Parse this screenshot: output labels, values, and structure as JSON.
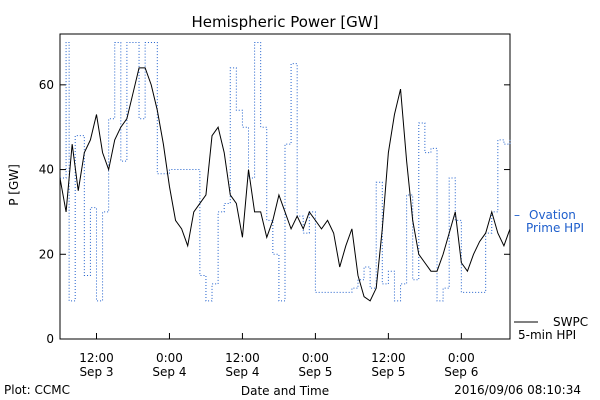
{
  "chart_data": {
    "type": "line",
    "title": "Hemispheric Power [GW]",
    "xlabel": "Date and Time",
    "ylabel": "P [GW]",
    "ylim": [
      0,
      72
    ],
    "yticks": [
      0,
      20,
      40,
      60
    ],
    "xlim": [
      "2016-09-03T06:00",
      "2016-09-06T08:00"
    ],
    "xticks": [
      {
        "at": "2016-09-03T12:00",
        "time": "12:00",
        "date": "Sep 3"
      },
      {
        "at": "2016-09-04T00:00",
        "time": "0:00",
        "date": "Sep 4"
      },
      {
        "at": "2016-09-04T12:00",
        "time": "12:00",
        "date": "Sep 4"
      },
      {
        "at": "2016-09-05T00:00",
        "time": "0:00",
        "date": "Sep 5"
      },
      {
        "at": "2016-09-05T12:00",
        "time": "12:00",
        "date": "Sep 5"
      },
      {
        "at": "2016-09-06T00:00",
        "time": "0:00",
        "date": "Sep 6"
      }
    ],
    "grid": false,
    "legend_placement": "right",
    "series": [
      {
        "name": "Ovation Prime HPI",
        "legend_lines": [
          "Ovation",
          "Prime HPI"
        ],
        "style": "dotted",
        "color": "#1f5fcc",
        "x": [
          "2016-09-03T06:00",
          "2016-09-03T07:00",
          "2016-09-03T07:30",
          "2016-09-03T08:30",
          "2016-09-03T09:00",
          "2016-09-03T10:00",
          "2016-09-03T11:00",
          "2016-09-03T12:00",
          "2016-09-03T13:00",
          "2016-09-03T14:00",
          "2016-09-03T15:00",
          "2016-09-03T16:00",
          "2016-09-03T17:00",
          "2016-09-03T18:00",
          "2016-09-03T19:00",
          "2016-09-03T20:00",
          "2016-09-03T21:00",
          "2016-09-03T22:00",
          "2016-09-04T00:00",
          "2016-09-04T03:00",
          "2016-09-04T05:00",
          "2016-09-04T06:00",
          "2016-09-04T07:00",
          "2016-09-04T08:00",
          "2016-09-04T09:00",
          "2016-09-04T10:00",
          "2016-09-04T11:00",
          "2016-09-04T12:00",
          "2016-09-04T13:00",
          "2016-09-04T14:00",
          "2016-09-04T15:00",
          "2016-09-04T16:00",
          "2016-09-04T17:00",
          "2016-09-04T18:00",
          "2016-09-04T19:00",
          "2016-09-04T20:00",
          "2016-09-04T21:00",
          "2016-09-04T22:00",
          "2016-09-04T23:00",
          "2016-09-05T00:00",
          "2016-09-05T04:00",
          "2016-09-05T06:00",
          "2016-09-05T07:00",
          "2016-09-05T08:00",
          "2016-09-05T09:00",
          "2016-09-05T10:00",
          "2016-09-05T11:00",
          "2016-09-05T12:00",
          "2016-09-05T13:00",
          "2016-09-05T14:00",
          "2016-09-05T15:00",
          "2016-09-05T16:00",
          "2016-09-05T17:00",
          "2016-09-05T18:00",
          "2016-09-05T19:00",
          "2016-09-05T20:00",
          "2016-09-05T21:00",
          "2016-09-05T22:00",
          "2016-09-05T23:00",
          "2016-09-06T00:00",
          "2016-09-06T01:00",
          "2016-09-06T02:00",
          "2016-09-06T03:00",
          "2016-09-06T04:00",
          "2016-09-06T05:00",
          "2016-09-06T06:00",
          "2016-09-06T07:00",
          "2016-09-06T08:00"
        ],
        "y": [
          38,
          70,
          9,
          48,
          48,
          15,
          31,
          9,
          30,
          52,
          70,
          42,
          70,
          70,
          52,
          70,
          70,
          39,
          40,
          40,
          15,
          9,
          13,
          30,
          32,
          64,
          54,
          50,
          38,
          70,
          50,
          28,
          20,
          9,
          46,
          65,
          29,
          25,
          30,
          11,
          11,
          12,
          14,
          17,
          12,
          37,
          13,
          16,
          9,
          13,
          34,
          14,
          51,
          44,
          45,
          9,
          12,
          38,
          28,
          11,
          11,
          11,
          11,
          25,
          30,
          47,
          46,
          47
        ]
      },
      {
        "name": "SWPC 5-min HPI",
        "legend_lines": [
          "SWPC",
          "5-min HPI"
        ],
        "style": "solid",
        "color": "#000000",
        "x": [
          "2016-09-03T06:00",
          "2016-09-03T07:00",
          "2016-09-03T08:00",
          "2016-09-03T09:00",
          "2016-09-03T10:00",
          "2016-09-03T11:00",
          "2016-09-03T12:00",
          "2016-09-03T13:00",
          "2016-09-03T14:00",
          "2016-09-03T15:00",
          "2016-09-03T16:00",
          "2016-09-03T17:00",
          "2016-09-03T18:00",
          "2016-09-03T19:00",
          "2016-09-03T20:00",
          "2016-09-03T21:00",
          "2016-09-03T22:00",
          "2016-09-03T23:00",
          "2016-09-04T00:00",
          "2016-09-04T01:00",
          "2016-09-04T02:00",
          "2016-09-04T03:00",
          "2016-09-04T04:00",
          "2016-09-04T05:00",
          "2016-09-04T06:00",
          "2016-09-04T07:00",
          "2016-09-04T08:00",
          "2016-09-04T09:00",
          "2016-09-04T10:00",
          "2016-09-04T11:00",
          "2016-09-04T12:00",
          "2016-09-04T13:00",
          "2016-09-04T14:00",
          "2016-09-04T15:00",
          "2016-09-04T16:00",
          "2016-09-04T17:00",
          "2016-09-04T18:00",
          "2016-09-04T19:00",
          "2016-09-04T20:00",
          "2016-09-04T21:00",
          "2016-09-04T22:00",
          "2016-09-04T23:00",
          "2016-09-05T00:00",
          "2016-09-05T01:00",
          "2016-09-05T02:00",
          "2016-09-05T03:00",
          "2016-09-05T04:00",
          "2016-09-05T05:00",
          "2016-09-05T06:00",
          "2016-09-05T07:00",
          "2016-09-05T08:00",
          "2016-09-05T09:00",
          "2016-09-05T10:00",
          "2016-09-05T11:00",
          "2016-09-05T12:00",
          "2016-09-05T13:00",
          "2016-09-05T14:00",
          "2016-09-05T15:00",
          "2016-09-05T16:00",
          "2016-09-05T17:00",
          "2016-09-05T18:00",
          "2016-09-05T19:00",
          "2016-09-05T20:00",
          "2016-09-05T21:00",
          "2016-09-05T22:00",
          "2016-09-05T23:00",
          "2016-09-06T00:00",
          "2016-09-06T01:00",
          "2016-09-06T02:00",
          "2016-09-06T03:00",
          "2016-09-06T04:00",
          "2016-09-06T05:00",
          "2016-09-06T06:00",
          "2016-09-06T07:00",
          "2016-09-06T08:00"
        ],
        "y": [
          38,
          30,
          46,
          35,
          44,
          47,
          53,
          44,
          40,
          47,
          50,
          52,
          58,
          64,
          64,
          60,
          54,
          46,
          36,
          28,
          26,
          22,
          30,
          32,
          34,
          48,
          50,
          44,
          34,
          32,
          24,
          40,
          30,
          30,
          24,
          28,
          34,
          30,
          26,
          29,
          26,
          30,
          28,
          26,
          28,
          25,
          17,
          22,
          26,
          15,
          10,
          9,
          12,
          26,
          44,
          53,
          59,
          42,
          28,
          20,
          18,
          16,
          16,
          20,
          25,
          30,
          18,
          16,
          20,
          23,
          25,
          30,
          25,
          22,
          26
        ]
      }
    ],
    "annotations": {
      "plot_credit": "Plot: CCMC",
      "timestamp": "2016/09/06 08:10:34"
    }
  }
}
